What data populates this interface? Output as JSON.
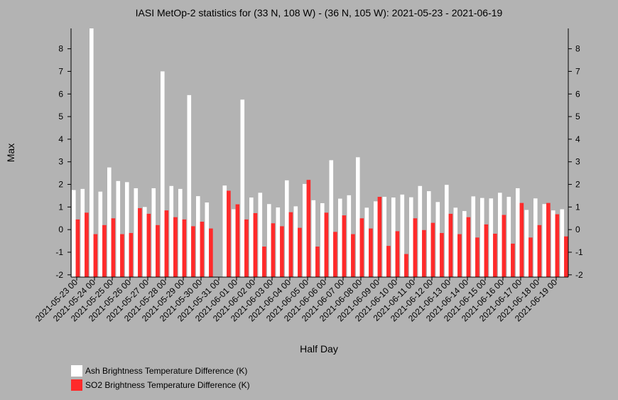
{
  "chart_data": {
    "type": "bar",
    "title": "IASI MetOp-2 statistics for (33 N, 108 W) - (36 N, 105 W): 2021-05-23 - 2021-06-19",
    "xlabel": "Half Day",
    "ylabel": "Max",
    "ylim": [
      -2.1,
      8.9
    ],
    "yticks": [
      -2,
      -1,
      0,
      1,
      2,
      3,
      4,
      5,
      6,
      7,
      8
    ],
    "xtick_labels": [
      "2021-05-23 00",
      "2021-05-24 00",
      "2021-05-25 00",
      "2021-05-26 00",
      "2021-05-27 00",
      "2021-05-28 00",
      "2021-05-29 00",
      "2021-05-30 00",
      "2021-05-31 00",
      "2021-06-01 00",
      "2021-06-02 00",
      "2021-06-03 00",
      "2021-06-04 00",
      "2021-06-05 00",
      "2021-06-06 00",
      "2021-06-07 00",
      "2021-06-08 00",
      "2021-06-09 00",
      "2021-06-10 00",
      "2021-06-11 00",
      "2021-06-12 00",
      "2021-06-13 00",
      "2021-06-14 00",
      "2021-06-15 00",
      "2021-06-16 00",
      "2021-06-17 00",
      "2021-06-18 00",
      "2021-06-19 00"
    ],
    "grid": false,
    "legend_position": "bottom-left",
    "series": [
      {
        "name": "Ash Brightness Temperature Difference (K)",
        "color": "#ffffff",
        "values": [
          1.75,
          1.8,
          8.9,
          1.68,
          2.75,
          2.15,
          2.1,
          1.83,
          1.0,
          1.83,
          7.0,
          1.93,
          1.8,
          5.95,
          1.48,
          1.2,
          null,
          1.95,
          0.9,
          5.75,
          1.42,
          1.63,
          1.13,
          0.98,
          2.18,
          1.03,
          2.02,
          1.3,
          1.17,
          3.07,
          1.37,
          1.52,
          3.2,
          0.97,
          1.25,
          1.45,
          1.42,
          1.55,
          1.43,
          1.93,
          1.7,
          1.22,
          1.98,
          0.97,
          0.82,
          1.47,
          1.4,
          1.38,
          1.63,
          1.45,
          1.83,
          0.87,
          1.38,
          1.13,
          0.85,
          0.9
        ]
      },
      {
        "name": "SO2 Brightness Temperature Difference (K)",
        "color": "#ff2a2a",
        "values": [
          0.45,
          0.75,
          -0.2,
          0.2,
          0.5,
          -0.2,
          -0.15,
          0.95,
          0.7,
          0.2,
          0.85,
          0.55,
          0.45,
          0.15,
          0.35,
          0.05,
          null,
          1.72,
          1.12,
          0.45,
          0.73,
          -0.75,
          0.28,
          0.15,
          0.77,
          0.08,
          2.2,
          -0.75,
          0.75,
          -0.1,
          0.63,
          -0.2,
          0.5,
          0.05,
          1.45,
          -0.72,
          -0.07,
          -1.08,
          0.5,
          -0.02,
          0.3,
          -0.15,
          0.7,
          -0.2,
          0.55,
          -0.35,
          0.23,
          -0.18,
          0.65,
          -0.62,
          1.18,
          -0.35,
          0.2,
          1.18,
          0.68,
          -0.3
        ]
      }
    ]
  }
}
